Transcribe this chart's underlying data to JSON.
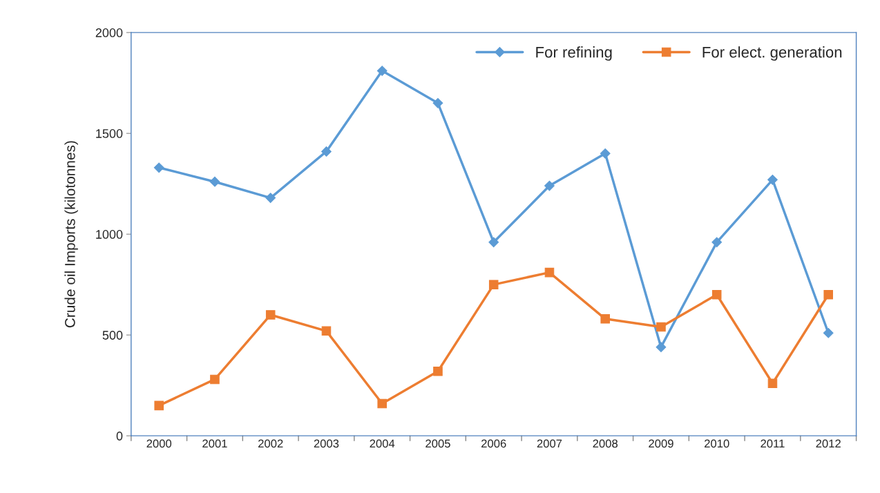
{
  "chart_data": {
    "type": "line",
    "ylabel": "Crude oil Imports (kilotonnes)",
    "categories": [
      "2000",
      "2001",
      "2002",
      "2003",
      "2004",
      "2005",
      "2006",
      "2007",
      "2008",
      "2009",
      "2010",
      "2011",
      "2012"
    ],
    "series": [
      {
        "name": "For refining",
        "color": "#5b9bd5",
        "marker": "diamond",
        "values": [
          1330,
          1260,
          1180,
          1410,
          1810,
          1650,
          960,
          1240,
          1400,
          440,
          960,
          1270,
          510
        ]
      },
      {
        "name": "For elect. generation",
        "color": "#ed7d31",
        "marker": "square",
        "values": [
          150,
          280,
          600,
          520,
          160,
          320,
          750,
          810,
          580,
          540,
          700,
          260,
          700
        ]
      }
    ],
    "ylim": [
      0,
      2000
    ],
    "yticks": [
      0,
      500,
      1000,
      1500,
      2000
    ],
    "grid": false,
    "legend": "top right"
  }
}
